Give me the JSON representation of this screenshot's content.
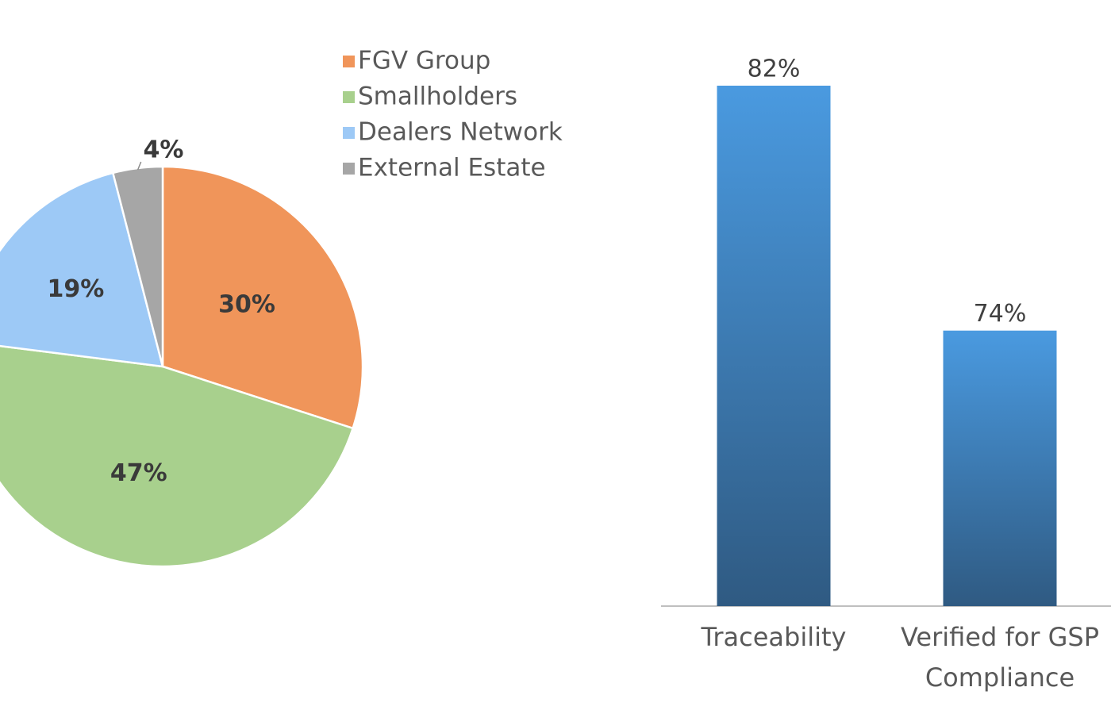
{
  "chart_data": [
    {
      "type": "pie",
      "labels": [
        "FGV Group",
        "Smallholders",
        "Dealers Network",
        "External Estate"
      ],
      "values": [
        30,
        47,
        19,
        4
      ],
      "value_labels": [
        "30%",
        "47%",
        "19%",
        "4%"
      ],
      "colors": [
        "#f0955a",
        "#a8d08d",
        "#9dc9f6",
        "#a6a6a6"
      ],
      "legend_position": "right"
    },
    {
      "type": "bar",
      "categories": [
        "Traceability",
        "Verified for GSP Compliance"
      ],
      "category_lines": [
        [
          "Traceability"
        ],
        [
          "Verified for GSP",
          "Compliance"
        ]
      ],
      "values": [
        82,
        74
      ],
      "value_labels": [
        "82%",
        "74%"
      ],
      "ylim": [
        65,
        84
      ],
      "colors": {
        "top": "#4a9ae0",
        "bottom": "#2f5a82"
      },
      "grid": false
    }
  ]
}
